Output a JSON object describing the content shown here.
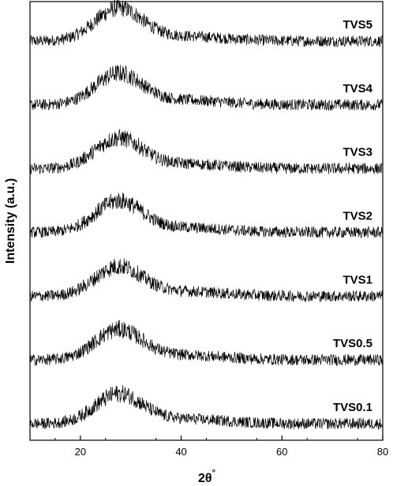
{
  "chart_data": {
    "type": "line",
    "title": "",
    "xlabel": "2θ",
    "xlabel_suffix": "°",
    "ylabel": "Intensity (a.u.)",
    "xlim": [
      10,
      80
    ],
    "xticks": [
      20,
      40,
      60,
      80
    ],
    "x_tick_labels": [
      "20",
      "40",
      "60",
      "80"
    ],
    "y_ticks_shown": false,
    "grid": false,
    "legend": "none",
    "line_color": "#000000",
    "series": [
      {
        "name": "TVS5",
        "peak_2theta": 27.5,
        "baseline": 0.3,
        "peak_height": 1.0,
        "noise": 0.18
      },
      {
        "name": "TVS4",
        "peak_2theta": 27.5,
        "baseline": 0.3,
        "peak_height": 0.95,
        "noise": 0.18
      },
      {
        "name": "TVS3",
        "peak_2theta": 27.5,
        "baseline": 0.3,
        "peak_height": 0.92,
        "noise": 0.18
      },
      {
        "name": "TVS2",
        "peak_2theta": 27.5,
        "baseline": 0.3,
        "peak_height": 0.95,
        "noise": 0.18
      },
      {
        "name": "TVS1",
        "peak_2theta": 27.5,
        "baseline": 0.3,
        "peak_height": 0.9,
        "noise": 0.18
      },
      {
        "name": "TVS0.5",
        "peak_2theta": 27.5,
        "baseline": 0.3,
        "peak_height": 0.92,
        "noise": 0.18
      },
      {
        "name": "TVS0.1",
        "peak_2theta": 27.5,
        "baseline": 0.3,
        "peak_height": 0.9,
        "noise": 0.18
      }
    ]
  }
}
